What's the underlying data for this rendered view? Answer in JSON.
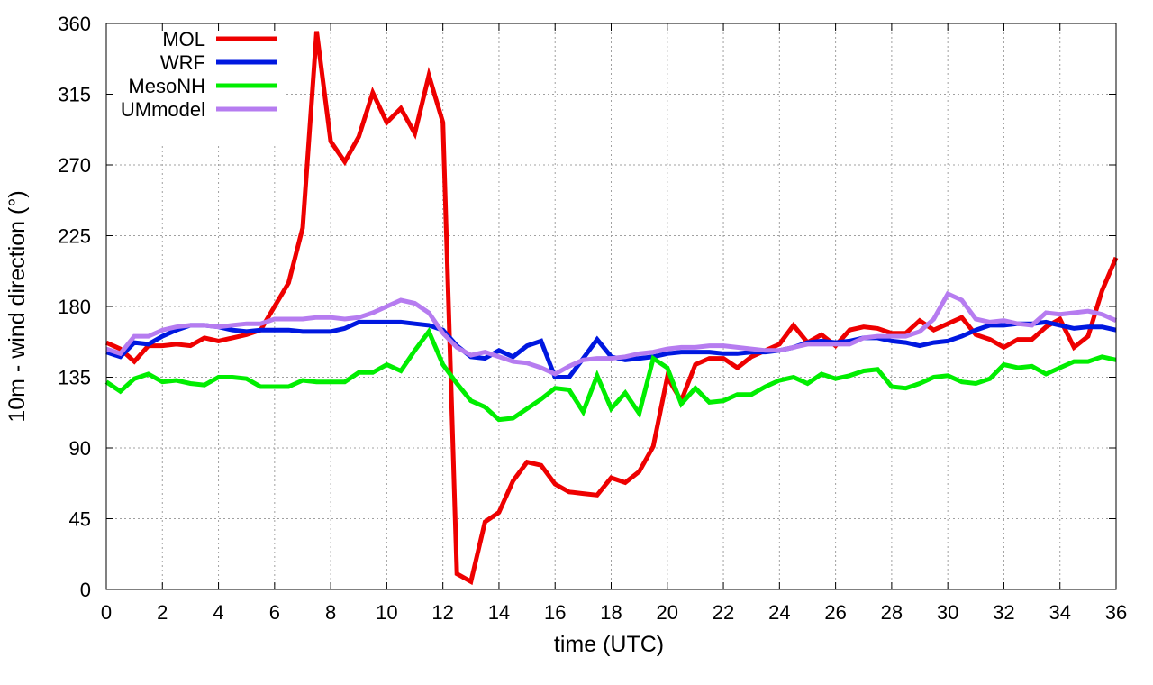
{
  "chart_data": {
    "type": "line",
    "xlabel": "time (UTC)",
    "ylabel": "10m - wind direction (°)",
    "xlim": [
      0,
      36
    ],
    "ylim": [
      0,
      360
    ],
    "xticks": [
      0,
      2,
      4,
      6,
      8,
      10,
      12,
      14,
      16,
      18,
      20,
      22,
      24,
      26,
      28,
      30,
      32,
      34,
      36
    ],
    "yticks": [
      0,
      45,
      90,
      135,
      180,
      225,
      270,
      315,
      360
    ],
    "grid": true,
    "legend_position": "top-left",
    "x": [
      0,
      0.5,
      1,
      1.5,
      2,
      2.5,
      3,
      3.5,
      4,
      4.5,
      5,
      5.5,
      6,
      6.5,
      7,
      7.5,
      8,
      8.5,
      9,
      9.5,
      10,
      10.5,
      11,
      11.5,
      12,
      12.5,
      13,
      13.5,
      14,
      14.5,
      15,
      15.5,
      16,
      16.5,
      17,
      17.5,
      18,
      18.5,
      19,
      19.5,
      20,
      20.5,
      21,
      21.5,
      22,
      22.5,
      23,
      23.5,
      24,
      24.5,
      25,
      25.5,
      26,
      26.5,
      27,
      27.5,
      28,
      28.5,
      29,
      29.5,
      30,
      30.5,
      31,
      31.5,
      32,
      32.5,
      33,
      33.5,
      34,
      34.5,
      35,
      35.5,
      36
    ],
    "series": [
      {
        "name": "MOL",
        "color": "#ee0000",
        "values": [
          157,
          153,
          145,
          155,
          155,
          156,
          155,
          160,
          158,
          160,
          162,
          165,
          180,
          195,
          230,
          355,
          285,
          272,
          288,
          316,
          297,
          306,
          290,
          327,
          297,
          10,
          5,
          43,
          49,
          69,
          81,
          79,
          67,
          62,
          61,
          60,
          71,
          68,
          75,
          91,
          135,
          120,
          143,
          147,
          147,
          141,
          148,
          152,
          156,
          168,
          157,
          162,
          155,
          165,
          167,
          166,
          163,
          163,
          171,
          165,
          169,
          173,
          162,
          159,
          154,
          159,
          159,
          167,
          172,
          154,
          161,
          190,
          211
        ]
      },
      {
        "name": "WRF",
        "color": "#0018e0",
        "values": [
          151,
          148,
          157,
          156,
          161,
          165,
          168,
          168,
          167,
          165,
          164,
          165,
          165,
          165,
          164,
          164,
          164,
          166,
          170,
          170,
          170,
          170,
          169,
          168,
          165,
          155,
          148,
          147,
          152,
          148,
          155,
          158,
          135,
          135,
          147,
          159,
          148,
          146,
          147,
          148,
          150,
          151,
          151,
          151,
          150,
          150,
          151,
          151,
          152,
          154,
          157,
          158,
          157,
          158,
          160,
          160,
          158,
          157,
          155,
          157,
          158,
          161,
          165,
          168,
          168,
          169,
          169,
          170,
          168,
          166,
          167,
          167,
          165
        ]
      },
      {
        "name": "MesoNH",
        "color": "#00ee00",
        "values": [
          132,
          126,
          134,
          137,
          132,
          133,
          131,
          130,
          135,
          135,
          134,
          129,
          129,
          129,
          133,
          132,
          132,
          132,
          138,
          138,
          143,
          139,
          152,
          164,
          143,
          131,
          120,
          116,
          108,
          109,
          115,
          121,
          128,
          127,
          113,
          136,
          115,
          125,
          112,
          147,
          141,
          118,
          128,
          119,
          120,
          124,
          124,
          129,
          133,
          135,
          131,
          137,
          134,
          136,
          139,
          140,
          129,
          128,
          131,
          135,
          136,
          132,
          131,
          134,
          143,
          141,
          142,
          137,
          141,
          145,
          145,
          148,
          146
        ]
      },
      {
        "name": "UMmodel",
        "color": "#b67cf0",
        "values": [
          153,
          150,
          161,
          161,
          165,
          167,
          168,
          168,
          167,
          168,
          169,
          169,
          172,
          172,
          172,
          173,
          173,
          172,
          173,
          176,
          180,
          184,
          182,
          176,
          163,
          154,
          149,
          151,
          148,
          145,
          144,
          141,
          137,
          142,
          146,
          147,
          147,
          148,
          150,
          151,
          153,
          154,
          154,
          155,
          155,
          154,
          153,
          152,
          152,
          154,
          156,
          156,
          156,
          156,
          160,
          161,
          161,
          161,
          164,
          172,
          188,
          184,
          172,
          170,
          171,
          169,
          168,
          176,
          175,
          176,
          177,
          175,
          171
        ]
      }
    ]
  }
}
